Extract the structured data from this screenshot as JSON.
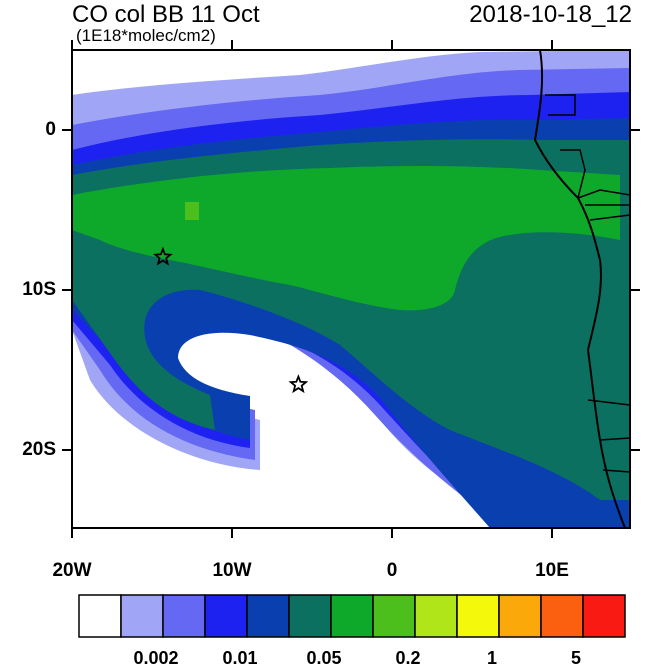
{
  "header": {
    "title": "CO col BB 11 Oct",
    "subtitle": "(1E18*molec/cm2)",
    "datestamp": "2018-10-18_12"
  },
  "map": {
    "lat_labels": [
      "0",
      "10S",
      "20S"
    ],
    "lon_labels": [
      "20W",
      "10W",
      "0",
      "10E"
    ],
    "markers": [
      {
        "name": "star-marker",
        "lon": -14.3,
        "lat": -8.0
      },
      {
        "name": "star-marker",
        "lon": -5.8,
        "lat": -16.0
      }
    ]
  },
  "colorbar": {
    "colors": [
      "#ffffff",
      "#a0a6f5",
      "#6468f2",
      "#1e22f0",
      "#0a3fb0",
      "#0b7060",
      "#0ea92a",
      "#4dbf1d",
      "#b0e51a",
      "#f4f80a",
      "#fba80a",
      "#fb6010",
      "#fa1a14"
    ],
    "labels": [
      "0.002",
      "0.01",
      "0.05",
      "0.2",
      "1",
      "5"
    ]
  }
}
